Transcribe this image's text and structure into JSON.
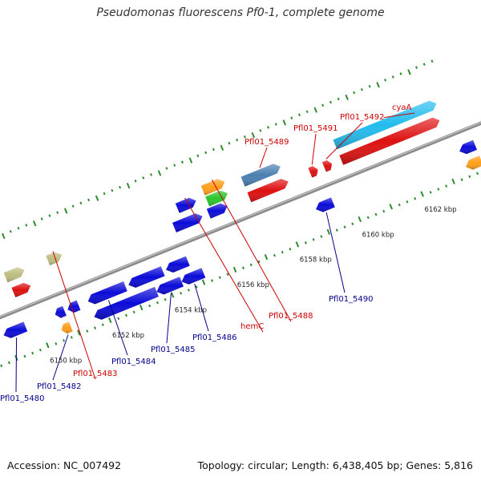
{
  "header": {
    "title": "Pseudomonas fluorescens Pf0-1, complete genome"
  },
  "footer": {
    "accession": "Accession: NC_007492",
    "summary": "Topology: circular; Length: 6,438,405 bp; Genes: 5,816"
  },
  "colors": {
    "backbone": "#8c8c8c",
    "tick": "#2e8b2e",
    "forward_label": "#cc0000",
    "reverse_label": "#00008b",
    "leader": "#cc0000",
    "leader_rev": "#00008b"
  },
  "scale": {
    "unit": "kbp",
    "labels": [
      {
        "kbp": 6150,
        "text": "6150 kbp"
      },
      {
        "kbp": 6152,
        "text": "6152 kbp"
      },
      {
        "kbp": 6154,
        "text": "6154 kbp"
      },
      {
        "kbp": 6156,
        "text": "6156 kbp"
      },
      {
        "kbp": 6158,
        "text": "6158 kbp"
      },
      {
        "kbp": 6160,
        "text": "6160 kbp"
      },
      {
        "kbp": 6162,
        "text": "6162 kbp"
      }
    ]
  },
  "features": [
    {
      "id": "f1",
      "strand": "-",
      "start": 6148.9,
      "end": 6149.6,
      "color": "#0b0bd8",
      "track": 1,
      "label": "Pfl01_5480"
    },
    {
      "id": "f2",
      "strand": "+",
      "start": 6149.6,
      "end": 6150.2,
      "color": "#bdbd82",
      "track": 2,
      "label": ""
    },
    {
      "id": "f3",
      "strand": "+",
      "start": 6149.65,
      "end": 6150.2,
      "color": "#dd1111",
      "track": 1,
      "label": ""
    },
    {
      "id": "f4",
      "strand": "-",
      "start": 6150.55,
      "end": 6150.85,
      "color": "#0b0bd8",
      "track": 1,
      "label": ""
    },
    {
      "id": "f5",
      "strand": "-",
      "start": 6150.55,
      "end": 6150.85,
      "color": "#ff9e1b",
      "track": 2,
      "label": "Pfl01_5482"
    },
    {
      "id": "f6",
      "strand": "-",
      "start": 6150.95,
      "end": 6151.3,
      "color": "#0b0bd8",
      "track": 1,
      "label": ""
    },
    {
      "id": "f7",
      "strand": "+",
      "start": 6150.95,
      "end": 6151.4,
      "color": "#bdbd82",
      "track": 2,
      "label": "Pfl01_5483"
    },
    {
      "id": "f8",
      "strand": "-",
      "start": 6151.6,
      "end": 6152.8,
      "color": "#0b0bd8",
      "track": 1,
      "label": "Pfl01_5484"
    },
    {
      "id": "f9",
      "strand": "-",
      "start": 6151.6,
      "end": 6153.6,
      "color": "#0b0bd8",
      "track": 2,
      "label": ""
    },
    {
      "id": "f10",
      "strand": "-",
      "start": 6152.9,
      "end": 6154.0,
      "color": "#0b0bd8",
      "track": 1,
      "label": ""
    },
    {
      "id": "f11",
      "strand": "-",
      "start": 6153.6,
      "end": 6154.4,
      "color": "#0b0bd8",
      "track": 2,
      "label": "Pfl01_5485"
    },
    {
      "id": "f12",
      "strand": "-",
      "start": 6154.1,
      "end": 6154.8,
      "color": "#0b0bd8",
      "track": 1,
      "label": ""
    },
    {
      "id": "f13",
      "strand": "-",
      "start": 6154.4,
      "end": 6155.1,
      "color": "#0b0bd8",
      "track": 2,
      "label": "Pfl01_5486"
    },
    {
      "id": "f14",
      "strand": "+",
      "start": 6154.8,
      "end": 6155.7,
      "color": "#0b0bd8",
      "track": 1,
      "label": ""
    },
    {
      "id": "f15",
      "strand": "+",
      "start": 6155.1,
      "end": 6155.7,
      "color": "#0b0bd8",
      "track": 2,
      "label": "hemC"
    },
    {
      "id": "f16",
      "strand": "+",
      "start": 6155.9,
      "end": 6156.5,
      "color": "#0b0bd8",
      "track": 1,
      "label": ""
    },
    {
      "id": "f17",
      "strand": "+",
      "start": 6156.0,
      "end": 6156.65,
      "color": "#2bc52b",
      "track": 1.7,
      "label": ""
    },
    {
      "id": "f18",
      "strand": "+",
      "start": 6156.0,
      "end": 6156.7,
      "color": "#ff9e1b",
      "track": 2.4,
      "label": "Pfl01_5488"
    },
    {
      "id": "f19",
      "strand": "+",
      "start": 6157.2,
      "end": 6158.4,
      "color": "#4a7fb0",
      "track": 2,
      "label": "Pfl01_5489"
    },
    {
      "id": "f20",
      "strand": "+",
      "start": 6157.2,
      "end": 6158.45,
      "color": "#dd1111",
      "track": 1,
      "label": ""
    },
    {
      "id": "f21",
      "strand": "+",
      "start": 6159.15,
      "end": 6159.4,
      "color": "#dd1111",
      "track": 1,
      "label": "Pfl01_5491"
    },
    {
      "id": "f22",
      "strand": "-",
      "start": 6158.9,
      "end": 6159.45,
      "color": "#0b0bd8",
      "track": 1,
      "label": "Pfl01_5490"
    },
    {
      "id": "f23",
      "strand": "+",
      "start": 6159.6,
      "end": 6159.85,
      "color": "#dd1111",
      "track": 1,
      "label": "Pfl01_5492"
    },
    {
      "id": "f24",
      "strand": "+",
      "start": 6160.15,
      "end": 6163.4,
      "color": "#22bbee",
      "track": 2,
      "label": "cyaA"
    },
    {
      "id": "f25",
      "strand": "+",
      "start": 6160.15,
      "end": 6163.3,
      "color": "#dd1111",
      "track": 1,
      "label": ""
    },
    {
      "id": "f26",
      "strand": "-",
      "start": 6163.5,
      "end": 6164.0,
      "color": "#0b0bd8",
      "track": 1,
      "label": ""
    },
    {
      "id": "f27",
      "strand": "-",
      "start": 6163.5,
      "end": 6164.0,
      "color": "#ff9e1b",
      "track": 2,
      "label": ""
    }
  ]
}
